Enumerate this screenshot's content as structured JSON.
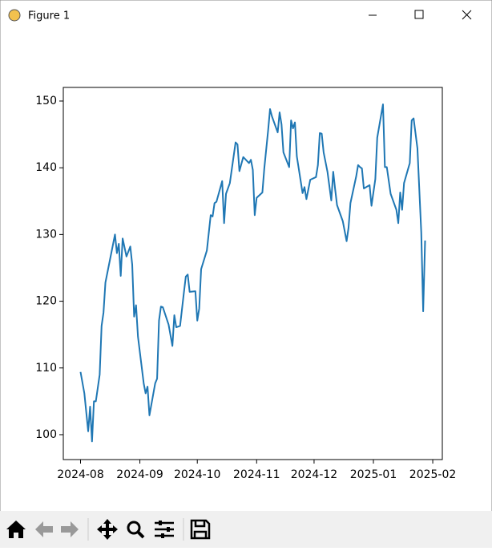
{
  "window": {
    "title": "Figure 1"
  },
  "chart_data": {
    "type": "line",
    "x": [
      0,
      2,
      4,
      5,
      6,
      7,
      8,
      10,
      11,
      12,
      13,
      18,
      19,
      20,
      21,
      22,
      24,
      26,
      27,
      28,
      29,
      30,
      33,
      34,
      35,
      36,
      39,
      40,
      41,
      42,
      43,
      46,
      48,
      49,
      50,
      52,
      54,
      55,
      56,
      57,
      60,
      61,
      62,
      63,
      66,
      68,
      69,
      70,
      71,
      74,
      75,
      76,
      78,
      81,
      82,
      83,
      85,
      88,
      89,
      90,
      91,
      92,
      95,
      96,
      98,
      99,
      100,
      103,
      104,
      105,
      106,
      109,
      110,
      111,
      112,
      113,
      116,
      117,
      118,
      120,
      123,
      124,
      125,
      126,
      127,
      129,
      131,
      132,
      133,
      134,
      137,
      139,
      140,
      141,
      144,
      145,
      146,
      147,
      148,
      151,
      152,
      154,
      155,
      158,
      159,
      160,
      162,
      165,
      166,
      167,
      168,
      169,
      172,
      173,
      174,
      176,
      178,
      179,
      180
    ],
    "series": [
      {
        "color": "#1f77b4",
        "values": [
          109.4,
          106.2,
          100.5,
          104.2,
          99.0,
          105.0,
          105.0,
          109.0,
          116.3,
          118.3,
          122.8,
          130.0,
          127.2,
          128.6,
          123.8,
          129.4,
          126.7,
          128.2,
          125.5,
          117.7,
          119.4,
          114.7,
          107.7,
          106.2,
          107.2,
          102.9,
          107.7,
          108.4,
          117.1,
          119.2,
          119.1,
          116.5,
          113.3,
          117.9,
          116.1,
          116.3,
          121.3,
          123.7,
          124.0,
          121.4,
          121.5,
          117.1,
          118.9,
          124.8,
          127.6,
          132.9,
          132.7,
          134.7,
          134.9,
          138.0,
          131.7,
          136.1,
          137.7,
          143.8,
          143.5,
          139.5,
          141.6,
          140.7,
          141.2,
          139.7,
          132.9,
          135.5,
          136.3,
          139.9,
          145.6,
          148.8,
          147.7,
          145.3,
          148.3,
          146.5,
          142.3,
          140.1,
          147.1,
          145.9,
          146.8,
          141.7,
          136.2,
          137.1,
          135.3,
          138.2,
          138.6,
          140.4,
          145.2,
          145.1,
          142.3,
          139.4,
          135.1,
          139.4,
          136.8,
          134.4,
          132.0,
          129.0,
          131.0,
          134.7,
          138.7,
          140.4,
          140.1,
          139.9,
          136.9,
          137.4,
          134.3,
          138.3,
          144.5,
          149.5,
          140.1,
          140.1,
          136.1,
          133.7,
          131.7,
          136.3,
          133.7,
          137.7,
          140.7,
          147.1,
          147.4,
          142.9,
          130.3,
          118.5,
          129.1
        ]
      }
    ],
    "xlim": [
      -9,
      189
    ],
    "xticks": [
      {
        "value": 0,
        "label": "2024-08"
      },
      {
        "value": 31,
        "label": "2024-09"
      },
      {
        "value": 61,
        "label": "2024-10"
      },
      {
        "value": 92,
        "label": "2024-11"
      },
      {
        "value": 122,
        "label": "2024-12"
      },
      {
        "value": 153,
        "label": "2025-01"
      },
      {
        "value": 184,
        "label": "2025-02"
      }
    ],
    "ylim": [
      96.27,
      152.04
    ],
    "yticks": [
      100,
      110,
      120,
      130,
      140,
      150
    ]
  }
}
